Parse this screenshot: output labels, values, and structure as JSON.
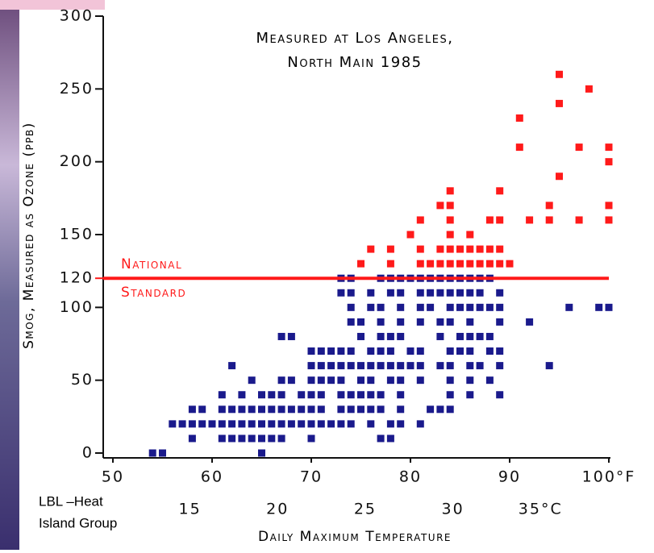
{
  "chart_data": {
    "type": "scatter",
    "title": [
      "Measured at Los Angeles,",
      "North Main 1985"
    ],
    "y_label": "Smog, Measured as Ozone (ppb)",
    "x_label": "Daily Maximum Temperature",
    "credit": [
      "LBL –Heat",
      "Island Group"
    ],
    "xlim": [
      50,
      100
    ],
    "ylim": [
      0,
      300
    ],
    "xticks": [
      50,
      60,
      70,
      80,
      90,
      {
        "value": 100,
        "label": "100°F"
      }
    ],
    "yticks": [
      0,
      50,
      100,
      120,
      150,
      200,
      250,
      300
    ],
    "x2lim": [
      10.6,
      38.9
    ],
    "x2ticks": [
      15,
      20,
      25,
      30,
      {
        "value": 35,
        "label": "35°C"
      }
    ],
    "standard": {
      "value": 120,
      "label": [
        "National",
        "Standard"
      ],
      "color": "#ff1a1a"
    },
    "series": [
      {
        "color": "#1a1a8c",
        "points": [
          [
            54,
            0
          ],
          [
            55,
            0
          ],
          [
            65,
            0
          ],
          [
            58,
            10
          ],
          [
            61,
            10
          ],
          [
            62,
            10
          ],
          [
            63,
            10
          ],
          [
            64,
            10
          ],
          [
            65,
            10
          ],
          [
            66,
            10
          ],
          [
            67,
            10
          ],
          [
            70,
            10
          ],
          [
            77,
            10
          ],
          [
            78,
            10
          ],
          [
            56,
            20
          ],
          [
            57,
            20
          ],
          [
            58,
            20
          ],
          [
            59,
            20
          ],
          [
            60,
            20
          ],
          [
            61,
            20
          ],
          [
            62,
            20
          ],
          [
            63,
            20
          ],
          [
            64,
            20
          ],
          [
            65,
            20
          ],
          [
            66,
            20
          ],
          [
            67,
            20
          ],
          [
            68,
            20
          ],
          [
            69,
            20
          ],
          [
            70,
            20
          ],
          [
            71,
            20
          ],
          [
            72,
            20
          ],
          [
            73,
            20
          ],
          [
            74,
            20
          ],
          [
            76,
            20
          ],
          [
            78,
            20
          ],
          [
            79,
            20
          ],
          [
            81,
            20
          ],
          [
            58,
            30
          ],
          [
            59,
            30
          ],
          [
            61,
            30
          ],
          [
            62,
            30
          ],
          [
            63,
            30
          ],
          [
            64,
            30
          ],
          [
            65,
            30
          ],
          [
            66,
            30
          ],
          [
            67,
            30
          ],
          [
            68,
            30
          ],
          [
            69,
            30
          ],
          [
            70,
            30
          ],
          [
            71,
            30
          ],
          [
            73,
            30
          ],
          [
            74,
            30
          ],
          [
            75,
            30
          ],
          [
            76,
            30
          ],
          [
            77,
            30
          ],
          [
            79,
            30
          ],
          [
            82,
            30
          ],
          [
            83,
            30
          ],
          [
            84,
            30
          ],
          [
            61,
            40
          ],
          [
            63,
            40
          ],
          [
            65,
            40
          ],
          [
            66,
            40
          ],
          [
            67,
            40
          ],
          [
            69,
            40
          ],
          [
            70,
            40
          ],
          [
            71,
            40
          ],
          [
            73,
            40
          ],
          [
            74,
            40
          ],
          [
            75,
            40
          ],
          [
            76,
            40
          ],
          [
            77,
            40
          ],
          [
            79,
            40
          ],
          [
            84,
            40
          ],
          [
            86,
            40
          ],
          [
            89,
            40
          ],
          [
            64,
            50
          ],
          [
            67,
            50
          ],
          [
            68,
            50
          ],
          [
            70,
            50
          ],
          [
            71,
            50
          ],
          [
            72,
            50
          ],
          [
            73,
            50
          ],
          [
            75,
            50
          ],
          [
            76,
            50
          ],
          [
            78,
            50
          ],
          [
            79,
            50
          ],
          [
            81,
            50
          ],
          [
            84,
            50
          ],
          [
            86,
            50
          ],
          [
            88,
            50
          ],
          [
            62,
            60
          ],
          [
            70,
            60
          ],
          [
            71,
            60
          ],
          [
            72,
            60
          ],
          [
            73,
            60
          ],
          [
            74,
            60
          ],
          [
            75,
            60
          ],
          [
            76,
            60
          ],
          [
            77,
            60
          ],
          [
            78,
            60
          ],
          [
            79,
            60
          ],
          [
            80,
            60
          ],
          [
            81,
            60
          ],
          [
            83,
            60
          ],
          [
            84,
            60
          ],
          [
            86,
            60
          ],
          [
            87,
            60
          ],
          [
            89,
            60
          ],
          [
            94,
            60
          ],
          [
            70,
            70
          ],
          [
            71,
            70
          ],
          [
            72,
            70
          ],
          [
            73,
            70
          ],
          [
            74,
            70
          ],
          [
            76,
            70
          ],
          [
            77,
            70
          ],
          [
            78,
            70
          ],
          [
            80,
            70
          ],
          [
            81,
            70
          ],
          [
            84,
            70
          ],
          [
            85,
            70
          ],
          [
            86,
            70
          ],
          [
            88,
            70
          ],
          [
            89,
            70
          ],
          [
            67,
            80
          ],
          [
            68,
            80
          ],
          [
            75,
            80
          ],
          [
            77,
            80
          ],
          [
            78,
            80
          ],
          [
            79,
            80
          ],
          [
            83,
            80
          ],
          [
            85,
            80
          ],
          [
            86,
            80
          ],
          [
            87,
            80
          ],
          [
            88,
            80
          ],
          [
            74,
            90
          ],
          [
            75,
            90
          ],
          [
            77,
            90
          ],
          [
            79,
            90
          ],
          [
            81,
            90
          ],
          [
            83,
            90
          ],
          [
            84,
            90
          ],
          [
            86,
            90
          ],
          [
            89,
            90
          ],
          [
            92,
            90
          ],
          [
            74,
            100
          ],
          [
            76,
            100
          ],
          [
            77,
            100
          ],
          [
            79,
            100
          ],
          [
            81,
            100
          ],
          [
            82,
            100
          ],
          [
            84,
            100
          ],
          [
            85,
            100
          ],
          [
            86,
            100
          ],
          [
            87,
            100
          ],
          [
            88,
            100
          ],
          [
            89,
            100
          ],
          [
            96,
            100
          ],
          [
            99,
            100
          ],
          [
            100,
            100
          ],
          [
            73,
            110
          ],
          [
            74,
            110
          ],
          [
            76,
            110
          ],
          [
            78,
            110
          ],
          [
            79,
            110
          ],
          [
            81,
            110
          ],
          [
            82,
            110
          ],
          [
            83,
            110
          ],
          [
            84,
            110
          ],
          [
            85,
            110
          ],
          [
            86,
            110
          ],
          [
            87,
            110
          ],
          [
            89,
            110
          ],
          [
            73,
            120
          ],
          [
            74,
            120
          ],
          [
            77,
            120
          ],
          [
            78,
            120
          ],
          [
            79,
            120
          ],
          [
            80,
            120
          ],
          [
            81,
            120
          ],
          [
            82,
            120
          ],
          [
            83,
            120
          ],
          [
            84,
            120
          ],
          [
            85,
            120
          ],
          [
            86,
            120
          ],
          [
            87,
            120
          ],
          [
            88,
            120
          ]
        ]
      },
      {
        "color": "#ff1a1a",
        "points": [
          [
            75,
            130
          ],
          [
            78,
            130
          ],
          [
            81,
            130
          ],
          [
            82,
            130
          ],
          [
            83,
            130
          ],
          [
            84,
            130
          ],
          [
            85,
            130
          ],
          [
            86,
            130
          ],
          [
            87,
            130
          ],
          [
            88,
            130
          ],
          [
            89,
            130
          ],
          [
            90,
            130
          ],
          [
            76,
            140
          ],
          [
            78,
            140
          ],
          [
            81,
            140
          ],
          [
            83,
            140
          ],
          [
            84,
            140
          ],
          [
            85,
            140
          ],
          [
            86,
            140
          ],
          [
            87,
            140
          ],
          [
            88,
            140
          ],
          [
            89,
            140
          ],
          [
            80,
            150
          ],
          [
            84,
            150
          ],
          [
            86,
            150
          ],
          [
            81,
            160
          ],
          [
            84,
            160
          ],
          [
            88,
            160
          ],
          [
            89,
            160
          ],
          [
            92,
            160
          ],
          [
            94,
            160
          ],
          [
            97,
            160
          ],
          [
            100,
            160
          ],
          [
            83,
            170
          ],
          [
            84,
            170
          ],
          [
            94,
            170
          ],
          [
            100,
            170
          ],
          [
            84,
            180
          ],
          [
            89,
            180
          ],
          [
            95,
            190
          ],
          [
            100,
            200
          ],
          [
            91,
            210
          ],
          [
            97,
            210
          ],
          [
            100,
            210
          ],
          [
            91,
            230
          ],
          [
            95,
            240
          ],
          [
            98,
            250
          ],
          [
            95,
            260
          ]
        ]
      }
    ]
  }
}
